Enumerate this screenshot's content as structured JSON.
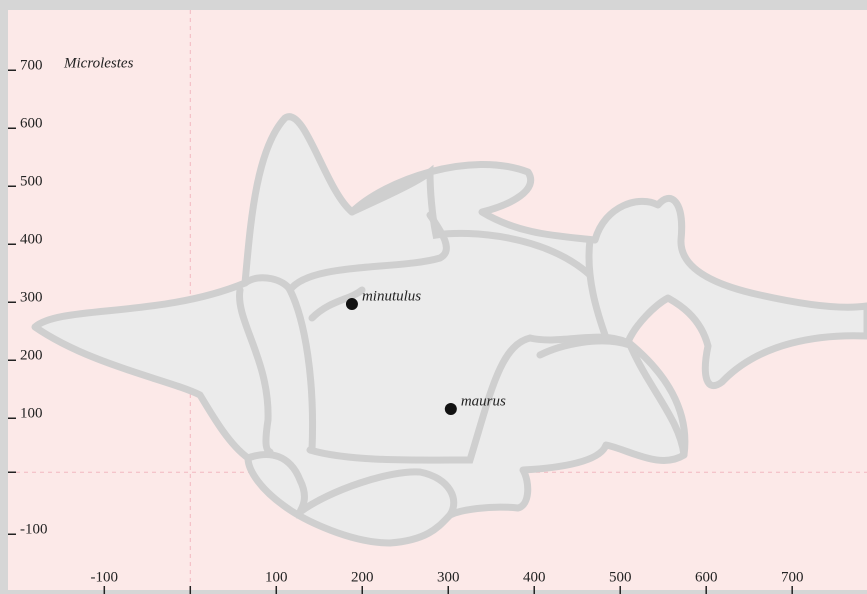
{
  "chart_data": {
    "type": "scatter",
    "title": "Microlestes",
    "xlim": [
      -212,
      787
    ],
    "ylim": [
      -203,
      797
    ],
    "xticks": [
      -100,
      100,
      200,
      300,
      400,
      500,
      600,
      700
    ],
    "yticks": [
      -100,
      100,
      200,
      300,
      400,
      500,
      600,
      700
    ],
    "color": "#111111",
    "points": [
      {
        "name": "minutulus",
        "x": 188,
        "y": 290
      },
      {
        "name": "maurus",
        "x": 303,
        "y": 109
      }
    ]
  }
}
